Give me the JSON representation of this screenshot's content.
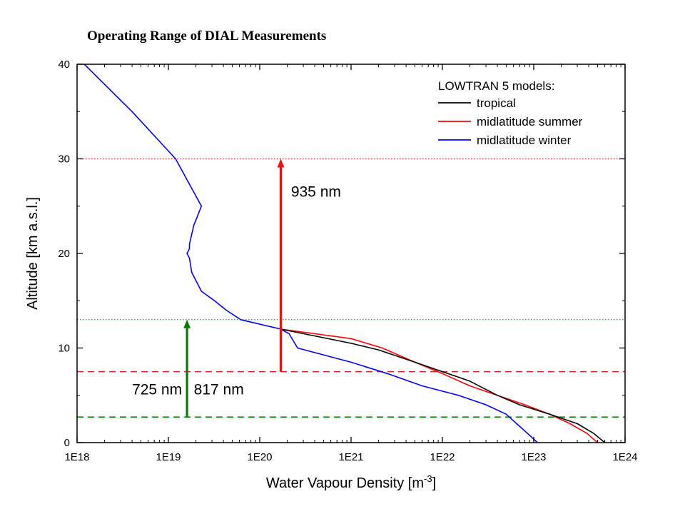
{
  "page_title": "Operating Range of DIAL Measurements",
  "chart_data": {
    "type": "line",
    "title": "",
    "xlabel": "Water Vapour Density [m",
    "xlabel_sup": "-3",
    "xlabel_end": "]",
    "ylabel": "Altitude [km a.s.l.]",
    "xscale": "log",
    "xlim": [
      1e+18,
      1e+24
    ],
    "ylim": [
      0,
      40
    ],
    "x_ticks": [
      1e+18,
      1e+19,
      1e+20,
      1e+21,
      1e+22,
      1e+23,
      1e+24
    ],
    "x_tick_labels": [
      "1E18",
      "1E19",
      "1E20",
      "1E21",
      "1E22",
      "1E23",
      "1E24"
    ],
    "y_ticks": [
      0,
      10,
      20,
      30,
      40
    ],
    "y_tick_labels": [
      "0",
      "10",
      "20",
      "30",
      "40"
    ],
    "grid": false,
    "legend": {
      "title": "LOWTRAN 5 models:",
      "position": "top-right"
    },
    "series": [
      {
        "name": "tropical",
        "color": "#000000",
        "points": [
          [
            1.7e+20,
            12
          ],
          [
            1e+21,
            10.5
          ],
          [
            2e+21,
            9.8
          ],
          [
            5e+21,
            8.5
          ],
          [
            1e+22,
            7.5
          ],
          [
            2e+22,
            6.5
          ],
          [
            4e+22,
            5
          ],
          [
            7e+22,
            4
          ],
          [
            1.5e+23,
            3
          ],
          [
            3e+23,
            2
          ],
          [
            4.5e+23,
            1
          ],
          [
            6e+23,
            0
          ]
        ]
      },
      {
        "name": "midlatitude summer",
        "color": "#ff0000",
        "points": [
          [
            1.7e+20,
            12
          ],
          [
            1e+21,
            11
          ],
          [
            2.2e+21,
            10
          ],
          [
            5e+21,
            8.5
          ],
          [
            1e+22,
            7.3
          ],
          [
            2e+22,
            6
          ],
          [
            4e+22,
            5
          ],
          [
            8e+22,
            4
          ],
          [
            1.5e+23,
            3
          ],
          [
            2.5e+23,
            2
          ],
          [
            3.8e+23,
            1
          ],
          [
            5e+23,
            0
          ]
        ]
      },
      {
        "name": "midlatitude winter",
        "color": "#0000ff",
        "points": [
          [
            1.2e+18,
            40
          ],
          [
            4e+18,
            35
          ],
          [
            1.2e+19,
            30
          ],
          [
            2.3e+19,
            25
          ],
          [
            1.9e+19,
            23
          ],
          [
            1.7e+19,
            21
          ],
          [
            1.7e+19,
            20.5
          ],
          [
            1.6e+19,
            20
          ],
          [
            1.7e+19,
            19.5
          ],
          [
            1.8e+19,
            18
          ],
          [
            2.3e+19,
            16
          ],
          [
            3.2e+19,
            15
          ],
          [
            4.3e+19,
            14
          ],
          [
            6.2e+19,
            13
          ],
          [
            1.7e+20,
            12
          ],
          [
            2.1e+20,
            11.5
          ],
          [
            2.6e+20,
            10
          ],
          [
            1e+21,
            8.5
          ],
          [
            2.5e+21,
            7.3
          ],
          [
            6e+21,
            6
          ],
          [
            1.5e+22,
            5
          ],
          [
            3e+22,
            4
          ],
          [
            5e+22,
            3
          ],
          [
            6.5e+22,
            2
          ],
          [
            8.5e+22,
            1
          ],
          [
            1.1e+23,
            0
          ]
        ]
      }
    ],
    "reference_lines": [
      {
        "y": 30,
        "color": "#e03030",
        "style": "dotted"
      },
      {
        "y": 13,
        "color": "#2c8a2c",
        "style": "dotted"
      },
      {
        "y": 7.5,
        "color": "#e02020",
        "style": "dashed"
      },
      {
        "y": 2.7,
        "color": "#0a8a0a",
        "style": "dashed"
      }
    ],
    "arrows": [
      {
        "x": 1.7e+20,
        "y_from": 7.5,
        "y_to": 30,
        "color": "#ee1111"
      },
      {
        "x": 1.6e+19,
        "y_from": 2.7,
        "y_to": 13,
        "color": "#0a7a0a"
      }
    ],
    "annotations": [
      {
        "text": "935 nm",
        "x": 2.2e+20,
        "y": 26
      },
      {
        "text": "725 nm",
        "x": 4e+18,
        "y": 5.1
      },
      {
        "text": "817 nm",
        "x": 1.9e+19,
        "y": 5.1
      }
    ]
  }
}
